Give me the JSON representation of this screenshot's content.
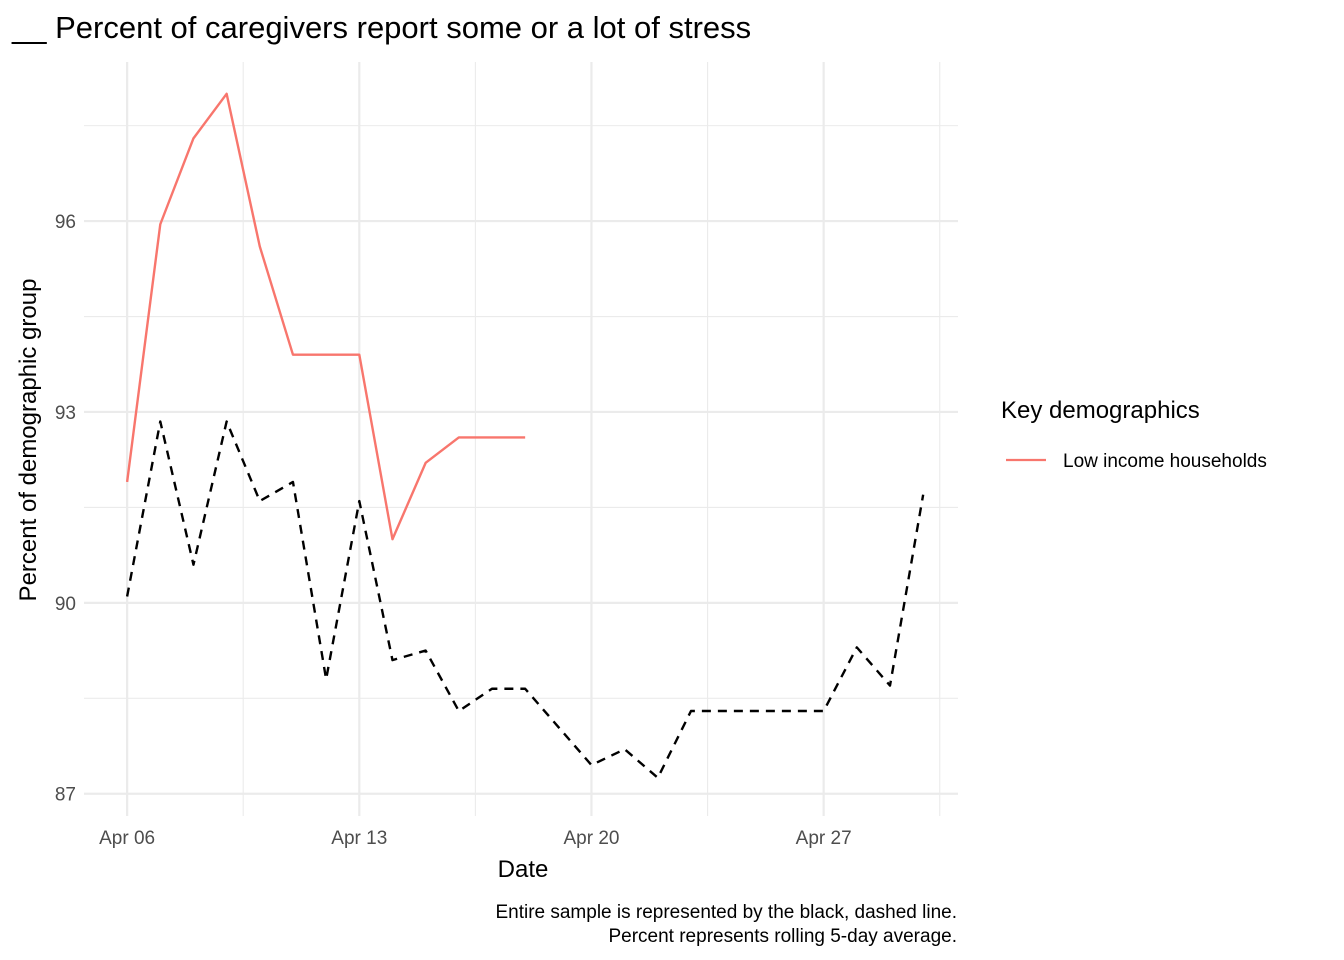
{
  "chart_data": {
    "type": "line",
    "title": "__ Percent of caregivers report some or a lot of stress",
    "xlabel": "Date",
    "ylabel": "Percent of demographic group",
    "x_tick_labels": [
      "Apr 06",
      "Apr 13",
      "Apr 20",
      "Apr 27"
    ],
    "x_ticks": [
      "2020-04-06",
      "2020-04-13",
      "2020-04-20",
      "2020-04-27"
    ],
    "y_ticks": [
      87,
      90,
      93,
      96
    ],
    "xlim": [
      "2020-04-06",
      "2020-04-30"
    ],
    "ylim": [
      87,
      98.4
    ],
    "grid": true,
    "legend": {
      "title": "Key demographics",
      "position": "right",
      "entries": [
        {
          "label": "Low income households",
          "color": "#F8766D"
        }
      ]
    },
    "series": [
      {
        "name": "Low income households",
        "color": "#F8766D",
        "style": "solid",
        "x": [
          "2020-04-06",
          "2020-04-07",
          "2020-04-08",
          "2020-04-09",
          "2020-04-10",
          "2020-04-11",
          "2020-04-12",
          "2020-04-13",
          "2020-04-14",
          "2020-04-15",
          "2020-04-16",
          "2020-04-17",
          "2020-04-18"
        ],
        "y": [
          91.9,
          95.95,
          97.3,
          98.0,
          95.6,
          93.9,
          93.9,
          93.9,
          91.0,
          92.2,
          92.6,
          92.6,
          92.6
        ]
      },
      {
        "color": "#000000",
        "style": "dashed",
        "x": [
          "2020-04-06",
          "2020-04-07",
          "2020-04-08",
          "2020-04-09",
          "2020-04-10",
          "2020-04-11",
          "2020-04-12",
          "2020-04-13",
          "2020-04-14",
          "2020-04-15",
          "2020-04-16",
          "2020-04-17",
          "2020-04-18",
          "2020-04-19",
          "2020-04-20",
          "2020-04-21",
          "2020-04-22",
          "2020-04-23",
          "2020-04-24",
          "2020-04-25",
          "2020-04-26",
          "2020-04-27",
          "2020-04-28",
          "2020-04-29",
          "2020-04-30"
        ],
        "y": [
          90.1,
          92.85,
          90.6,
          92.85,
          91.6,
          91.9,
          88.8,
          91.6,
          89.1,
          89.25,
          88.3,
          88.65,
          88.65,
          88.05,
          87.45,
          87.7,
          87.25,
          88.3,
          88.3,
          88.3,
          88.3,
          88.3,
          89.3,
          88.7,
          91.7
        ]
      }
    ],
    "caption": [
      "Entire sample is represented by the black, dashed line.",
      "Percent represents rolling 5-day average."
    ]
  }
}
